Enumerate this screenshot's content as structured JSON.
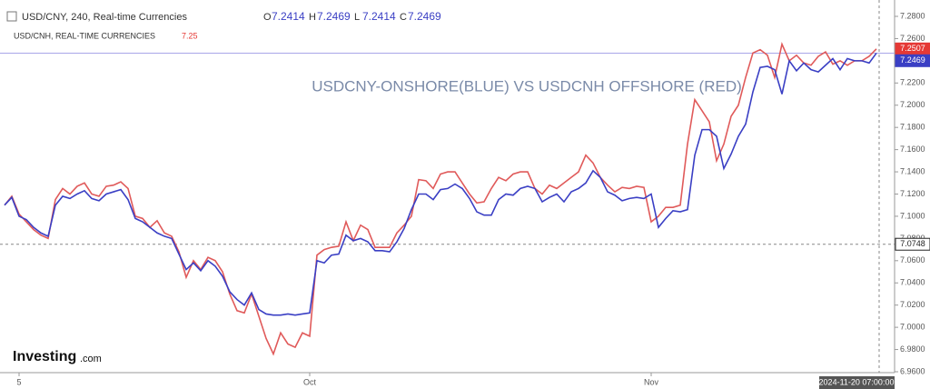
{
  "header": {
    "title": "USD/CNY, 240, Real-time Currencies",
    "ohlc": [
      {
        "label": "O",
        "value": 7.2414
      },
      {
        "label": "H",
        "value": 7.2469
      },
      {
        "label": "L",
        "value": 7.2414
      },
      {
        "label": "C",
        "value": 7.2469
      }
    ],
    "second_title": "USD/CNH, REAL-TIME CURRENCIES",
    "second_value": 7.25
  },
  "logo": {
    "name": "Investing",
    "suffix": ".com"
  },
  "crosshair_time": "2024-11-20 07:00:00",
  "chart_data": {
    "type": "line",
    "annotation": "USDCNY-ONSHORE(BLUE) VS USDCNH OFFSHORE (RED)",
    "categories": [
      null,
      null,
      "5",
      null,
      null,
      null,
      null,
      null,
      null,
      null,
      null,
      null,
      null,
      null,
      null,
      null,
      null,
      null,
      null,
      null,
      null,
      null,
      null,
      null,
      null,
      null,
      null,
      null,
      null,
      null,
      null,
      null,
      null,
      null,
      null,
      null,
      null,
      null,
      null,
      null,
      null,
      null,
      "Oct",
      null,
      null,
      null,
      null,
      null,
      null,
      null,
      null,
      null,
      null,
      null,
      null,
      null,
      null,
      null,
      null,
      null,
      null,
      null,
      null,
      null,
      null,
      null,
      null,
      null,
      null,
      null,
      null,
      null,
      null,
      null,
      null,
      null,
      null,
      null,
      null,
      null,
      null,
      null,
      null,
      null,
      null,
      null,
      null,
      null,
      null,
      "Nov",
      null,
      null,
      null,
      null,
      null,
      null,
      null,
      null,
      null,
      null,
      null,
      null,
      null,
      null,
      null,
      null,
      null,
      null,
      null,
      null,
      null,
      null,
      null,
      null,
      null,
      null,
      null,
      null,
      null,
      null,
      null
    ],
    "series": [
      {
        "name": "USD/CNH",
        "color": "#e05a5a",
        "values": [
          7.11,
          7.118,
          7.102,
          7.095,
          7.088,
          7.083,
          7.08,
          7.115,
          7.125,
          7.12,
          7.127,
          7.13,
          7.12,
          7.118,
          7.127,
          7.128,
          7.131,
          7.125,
          7.1,
          7.098,
          7.09,
          7.096,
          7.085,
          7.082,
          7.068,
          7.045,
          7.06,
          7.052,
          7.063,
          7.06,
          7.05,
          7.03,
          7.015,
          7.013,
          7.03,
          7.01,
          6.99,
          6.976,
          6.995,
          6.985,
          6.982,
          6.995,
          6.992,
          7.065,
          7.07,
          7.072,
          7.073,
          7.095,
          7.078,
          7.092,
          7.088,
          7.072,
          7.072,
          7.072,
          7.085,
          7.092,
          7.1,
          7.133,
          7.132,
          7.125,
          7.138,
          7.14,
          7.14,
          7.13,
          7.12,
          7.112,
          7.113,
          7.125,
          7.135,
          7.132,
          7.138,
          7.14,
          7.14,
          7.125,
          7.12,
          7.128,
          7.125,
          7.13,
          7.135,
          7.14,
          7.155,
          7.148,
          7.135,
          7.128,
          7.122,
          7.126,
          7.125,
          7.127,
          7.126,
          7.095,
          7.1,
          7.108,
          7.108,
          7.11,
          7.165,
          7.205,
          7.195,
          7.185,
          7.15,
          7.165,
          7.19,
          7.2,
          7.225,
          7.247,
          7.25,
          7.245,
          7.225,
          7.255,
          7.24,
          7.245,
          7.238,
          7.236,
          7.244,
          7.248,
          7.237,
          7.24,
          7.236,
          7.24,
          7.24,
          7.244,
          7.2507
        ]
      },
      {
        "name": "USD/CNY",
        "color": "#3a3fc4",
        "values": [
          7.11,
          7.117,
          7.1,
          7.097,
          7.09,
          7.085,
          7.082,
          7.11,
          7.118,
          7.116,
          7.12,
          7.123,
          7.116,
          7.114,
          7.12,
          7.122,
          7.124,
          7.115,
          7.098,
          7.095,
          7.09,
          7.085,
          7.082,
          7.08,
          7.066,
          7.052,
          7.058,
          7.051,
          7.06,
          7.055,
          7.046,
          7.032,
          7.025,
          7.02,
          7.031,
          7.016,
          7.012,
          7.011,
          7.011,
          7.012,
          7.011,
          7.012,
          7.013,
          7.06,
          7.058,
          7.065,
          7.066,
          7.083,
          7.078,
          7.08,
          7.077,
          7.069,
          7.069,
          7.068,
          7.077,
          7.089,
          7.106,
          7.12,
          7.12,
          7.115,
          7.124,
          7.125,
          7.129,
          7.125,
          7.116,
          7.104,
          7.101,
          7.101,
          7.115,
          7.12,
          7.119,
          7.125,
          7.127,
          7.125,
          7.113,
          7.117,
          7.12,
          7.113,
          7.122,
          7.125,
          7.13,
          7.141,
          7.135,
          7.122,
          7.119,
          7.114,
          7.116,
          7.117,
          7.116,
          7.12,
          7.09,
          7.098,
          7.105,
          7.104,
          7.106,
          7.155,
          7.178,
          7.178,
          7.172,
          7.143,
          7.156,
          7.172,
          7.183,
          7.212,
          7.234,
          7.235,
          7.232,
          7.21,
          7.24,
          7.231,
          7.238,
          7.232,
          7.23,
          7.236,
          7.242,
          7.232,
          7.242,
          7.24,
          7.24,
          7.238,
          7.2469
        ]
      }
    ],
    "price_lines": [
      {
        "value": 7.2507,
        "color": "#e53935"
      },
      {
        "value": 7.2469,
        "color": "#3a3fc4"
      },
      {
        "value": 7.0748,
        "color": "#222222"
      }
    ],
    "ylim": [
      6.96,
      7.28
    ],
    "yticks": [
      {
        "value": 6.96,
        "label": "6.9600"
      },
      {
        "value": 6.98,
        "label": "6.9800"
      },
      {
        "value": 7.0,
        "label": "7.0000"
      },
      {
        "value": 7.02,
        "label": "7.0200"
      },
      {
        "value": 7.04,
        "label": "7.0400"
      },
      {
        "value": 7.06,
        "label": "7.0600"
      },
      {
        "value": 7.08,
        "label": "7.0800"
      },
      {
        "value": 7.1,
        "label": "7.1000"
      },
      {
        "value": 7.12,
        "label": "7.1200"
      },
      {
        "value": 7.14,
        "label": "7.1400"
      },
      {
        "value": 7.16,
        "label": "7.1600"
      },
      {
        "value": 7.18,
        "label": "7.1800"
      },
      {
        "value": 7.2,
        "label": "7.2000"
      },
      {
        "value": 7.22,
        "label": "7.2200"
      },
      {
        "value": 7.24,
        "label": "7.2400"
      },
      {
        "value": 7.26,
        "label": "7.2600"
      },
      {
        "value": 7.28,
        "label": "7.2800"
      }
    ]
  }
}
